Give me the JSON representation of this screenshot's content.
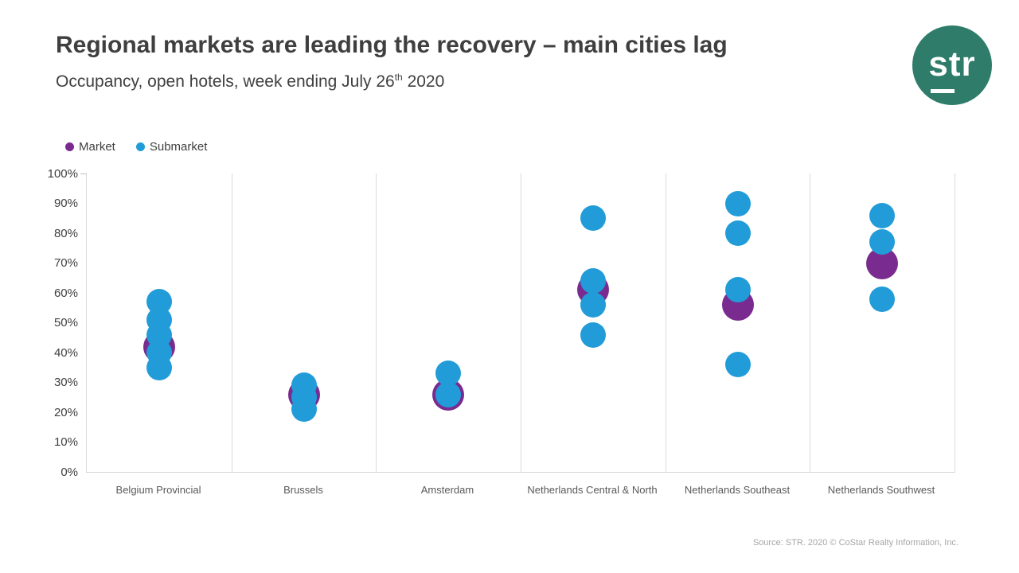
{
  "header": {
    "title": "Regional markets are leading the recovery – main cities lag",
    "subtitle_pre": "Occupancy, open hotels, week ending July 26",
    "subtitle_sup": "th",
    "subtitle_post": " 2020",
    "logo_text": "str"
  },
  "legend": {
    "market_label": "Market",
    "submarket_label": "Submarket"
  },
  "colors": {
    "market": "#7a2b8f",
    "submarket": "#219cd8",
    "logo_bg": "#2e7c69"
  },
  "footer": {
    "source": "Source: STR. 2020 © CoStar Realty Information, Inc."
  },
  "chart_data": {
    "type": "scatter",
    "title": "Regional markets are leading the recovery – main cities lag",
    "subtitle": "Occupancy, open hotels, week ending July 26th 2020",
    "ylabel": "Occupancy",
    "ylim": [
      0,
      100
    ],
    "grid": "vertical-only",
    "legend_position": "top-left",
    "yticks": [
      {
        "label": "0%",
        "value": 0
      },
      {
        "label": "10%",
        "value": 10
      },
      {
        "label": "20%",
        "value": 20
      },
      {
        "label": "30%",
        "value": 30
      },
      {
        "label": "40%",
        "value": 40
      },
      {
        "label": "50%",
        "value": 50
      },
      {
        "label": "60%",
        "value": 60
      },
      {
        "label": "70%",
        "value": 70
      },
      {
        "label": "80%",
        "value": 80
      },
      {
        "label": "90%",
        "value": 90
      },
      {
        "label": "100%",
        "value": 100
      }
    ],
    "categories": [
      "Belgium Provincial",
      "Brussels",
      "Amsterdam",
      "Netherlands Central & North",
      "Netherlands Southeast",
      "Netherlands Southwest"
    ],
    "series": [
      {
        "name": "Market",
        "values": [
          42,
          26,
          26,
          61,
          56,
          70
        ]
      },
      {
        "name": "Submarket",
        "values_per_category": [
          [
            57,
            51,
            46,
            40,
            35
          ],
          [
            29,
            25,
            21
          ],
          [
            33,
            26
          ],
          [
            85,
            64,
            56,
            46
          ],
          [
            90,
            80,
            61,
            36
          ],
          [
            86,
            77,
            58
          ]
        ]
      }
    ]
  }
}
